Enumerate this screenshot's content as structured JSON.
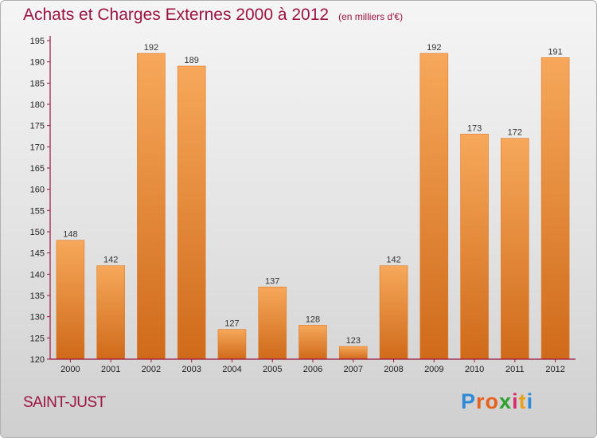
{
  "header": {
    "title": "Achats et Charges Externes 2000 à 2012",
    "subtitle": "(en milliers d'€)"
  },
  "footer": {
    "town": "SAINT-JUST",
    "logo": {
      "letters": [
        "P",
        "r",
        "o",
        "x",
        "i",
        "t",
        "i"
      ],
      "colors": [
        "#2e8ad8",
        "#e8601c",
        "#e8601c",
        "#2e9f2e",
        "#d82a6a",
        "#e8a01c",
        "#2e8ad8"
      ]
    }
  },
  "chart_data": {
    "type": "bar",
    "title": "Achats et Charges Externes 2000 à 2012",
    "subtitle": "(en milliers d'€)",
    "categories": [
      "2000",
      "2001",
      "2002",
      "2003",
      "2004",
      "2005",
      "2006",
      "2007",
      "2008",
      "2009",
      "2010",
      "2011",
      "2012"
    ],
    "values": [
      148,
      142,
      192,
      189,
      127,
      137,
      128,
      123,
      142,
      192,
      173,
      172,
      191
    ],
    "ylim": [
      120,
      195
    ],
    "yticks": [
      120,
      125,
      130,
      135,
      140,
      145,
      150,
      155,
      160,
      165,
      170,
      175,
      180,
      185,
      190,
      195
    ],
    "xlabel": "",
    "ylabel": "",
    "grid": false,
    "bar_color": "#ee8a3a",
    "axis_color": "#9c1440"
  }
}
